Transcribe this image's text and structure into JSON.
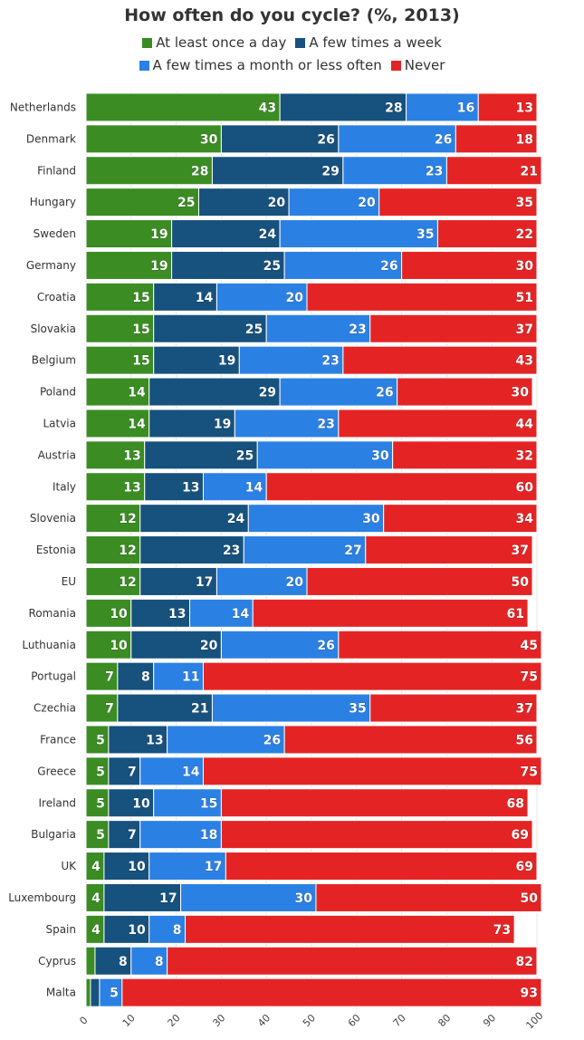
{
  "chart_data": {
    "type": "bar",
    "orientation": "horizontal",
    "stacked": true,
    "title": "How often do you cycle? (%, 2013)",
    "xlim": [
      0,
      100
    ],
    "xticks": [
      0,
      10,
      20,
      30,
      40,
      50,
      60,
      70,
      80,
      90,
      100
    ],
    "grid": true,
    "legend_position": "top",
    "categories": [
      "Netherlands",
      "Denmark",
      "Finland",
      "Hungary",
      "Sweden",
      "Germany",
      "Croatia",
      "Slovakia",
      "Belgium",
      "Poland",
      "Latvia",
      "Austria",
      "Italy",
      "Slovenia",
      "Estonia",
      "EU",
      "Romania",
      "Luthuania",
      "Portugal",
      "Czechia",
      "France",
      "Greece",
      "Ireland",
      "Bulgaria",
      "UK",
      "Luxembourg",
      "Spain",
      "Cyprus",
      "Malta"
    ],
    "series": [
      {
        "name": "At least once a day",
        "color": "#3a8c23",
        "values": [
          43,
          30,
          28,
          25,
          19,
          19,
          15,
          15,
          15,
          14,
          14,
          13,
          13,
          12,
          12,
          12,
          10,
          10,
          7,
          7,
          5,
          5,
          5,
          5,
          4,
          4,
          4,
          2,
          1
        ]
      },
      {
        "name": "A few times a week",
        "color": "#17517e",
        "values": [
          28,
          26,
          29,
          20,
          24,
          25,
          14,
          25,
          19,
          29,
          19,
          25,
          13,
          24,
          23,
          17,
          13,
          20,
          8,
          21,
          13,
          7,
          10,
          7,
          10,
          17,
          10,
          8,
          2
        ]
      },
      {
        "name": "A few times a month or less often",
        "color": "#2b80e3",
        "values": [
          16,
          26,
          23,
          20,
          35,
          26,
          20,
          23,
          23,
          26,
          23,
          30,
          14,
          30,
          27,
          20,
          14,
          26,
          11,
          35,
          26,
          14,
          15,
          18,
          17,
          30,
          8,
          8,
          5
        ]
      },
      {
        "name": "Never",
        "color": "#e42424",
        "values": [
          13,
          18,
          21,
          35,
          22,
          30,
          51,
          37,
          43,
          30,
          44,
          32,
          60,
          34,
          37,
          50,
          61,
          45,
          75,
          37,
          56,
          75,
          68,
          69,
          69,
          50,
          73,
          82,
          93
        ]
      }
    ],
    "data_labels": [
      [
        "43",
        "28",
        "16",
        "13"
      ],
      [
        "30",
        "26",
        "26",
        "18"
      ],
      [
        "28",
        "29",
        "23",
        "21"
      ],
      [
        "25",
        "20",
        "20",
        "35"
      ],
      [
        "19",
        "24",
        "35",
        "22"
      ],
      [
        "19",
        "25",
        "26",
        "30"
      ],
      [
        "15",
        "14",
        "20",
        "51"
      ],
      [
        "15",
        "25",
        "23",
        "37"
      ],
      [
        "15",
        "19",
        "23",
        "43"
      ],
      [
        "14",
        "29",
        "26",
        "30"
      ],
      [
        "14",
        "19",
        "23",
        "44"
      ],
      [
        "13",
        "25",
        "30",
        "32"
      ],
      [
        "13",
        "13",
        "14",
        "60"
      ],
      [
        "12",
        "24",
        "30",
        "34"
      ],
      [
        "12",
        "23",
        "27",
        "37"
      ],
      [
        "12",
        "17",
        "20",
        "50"
      ],
      [
        "10",
        "13",
        "14",
        "61"
      ],
      [
        "10",
        "20",
        "26",
        "45"
      ],
      [
        "7",
        "8",
        "11",
        "75"
      ],
      [
        "7",
        "21",
        "35",
        "37"
      ],
      [
        "5",
        "13",
        "26",
        "56"
      ],
      [
        "5",
        "7",
        "14",
        "75"
      ],
      [
        "5",
        "10",
        "15",
        "68"
      ],
      [
        "5",
        "7",
        "18",
        "69"
      ],
      [
        "4",
        "10",
        "17",
        "69"
      ],
      [
        "4",
        "17",
        "30",
        "50"
      ],
      [
        "4",
        "10",
        "8",
        "73"
      ],
      [
        "",
        "8",
        "8",
        "82"
      ],
      [
        "",
        "",
        "5",
        "93"
      ]
    ]
  }
}
